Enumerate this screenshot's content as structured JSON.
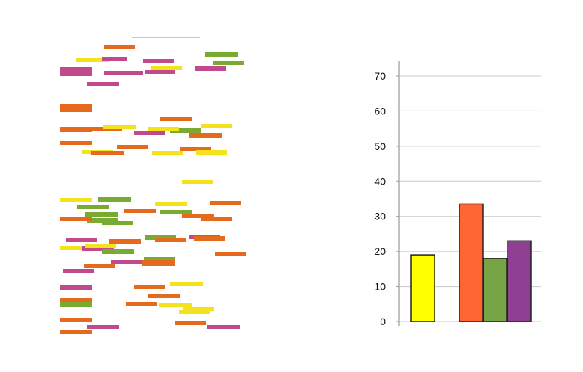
{
  "colors": {
    "yellow": "#ffff00",
    "orange": "#ff6633",
    "green": "#77a444",
    "purple": "#8e3f92",
    "grid": "#c8c8c8",
    "axis": "#9a9a9a",
    "strip_orange": "#e66a1e",
    "strip_magenta": "#c04a8c",
    "strip_yellow": "#f4e21a",
    "strip_green": "#79aa32"
  },
  "chart_data": {
    "type": "bar",
    "categories": [
      "",
      "",
      "",
      ""
    ],
    "series": [
      {
        "values": [
          19,
          33.5,
          18,
          23
        ]
      }
    ],
    "bar_colors": [
      "yellow",
      "orange",
      "green",
      "purple"
    ],
    "ylim": [
      0,
      70
    ],
    "yticks": [
      "0",
      "10",
      "20",
      "30",
      "40",
      "50",
      "60",
      "70"
    ],
    "grid": true,
    "legend": "none",
    "title": "",
    "xlabel": "",
    "ylabel": ""
  },
  "image_panel": {
    "description_icon": "colored-strip-pattern"
  }
}
